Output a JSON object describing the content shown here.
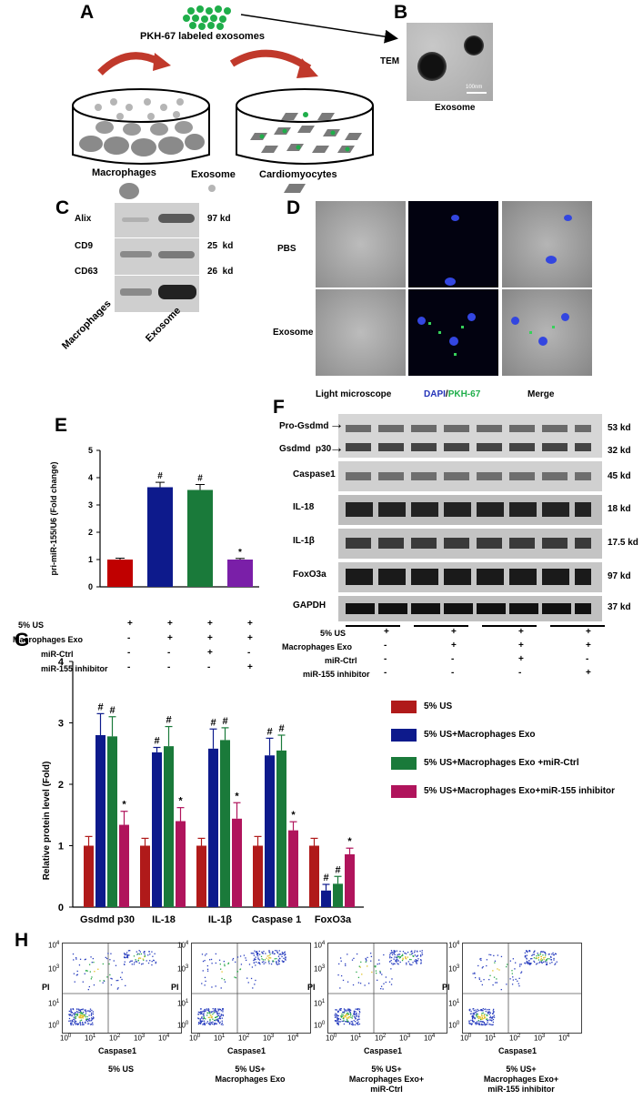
{
  "panel_labels": {
    "a": "A",
    "b": "B",
    "c": "C",
    "d": "D",
    "e": "E",
    "f": "F",
    "g": "G",
    "h": "H"
  },
  "panel_a": {
    "exosome_label": "PKH-67 labeled exosomes",
    "legend": [
      "Macrophages",
      "Exosome",
      "Cardiomyocytes"
    ],
    "colors": {
      "exosome_dots": "#1fae4a",
      "arrow": "#c0392b",
      "cell": "#8a8a8a"
    }
  },
  "panel_b": {
    "side_label": "TEM",
    "scale_bar": "100nm",
    "caption": "Exosome"
  },
  "panel_c": {
    "rows": [
      {
        "name": "Alix",
        "kd": "97 kd"
      },
      {
        "name": "CD9",
        "kd": "25  kd"
      },
      {
        "name": "CD63",
        "kd": "26  kd"
      }
    ],
    "lanes": [
      "Macrophages",
      "Exosome"
    ]
  },
  "panel_d": {
    "rows": [
      "PBS",
      "Exosome"
    ],
    "col_light": "Light microscope",
    "col_dapi": "DAPI",
    "col_slash": "/",
    "col_pkh": "PKH-67",
    "col_merge": "Merge"
  },
  "panel_e": {
    "chart_data": {
      "type": "bar",
      "ylabel": "pri-miR-155/U6 (Fold change)",
      "ylim": [
        0,
        5
      ],
      "yticks": [
        "0",
        "1",
        "2",
        "3",
        "4",
        "5"
      ],
      "values": [
        1.0,
        3.65,
        3.55,
        1.0
      ],
      "errors": [
        0.05,
        0.18,
        0.2,
        0.04
      ],
      "colors": [
        "#c00000",
        "#0d1a8c",
        "#1a7a3a",
        "#7a1fa8"
      ],
      "marks": [
        "",
        "#",
        "#",
        "*"
      ]
    },
    "conditions": [
      {
        "label": "5% US",
        "signs": [
          "+",
          "+",
          "+",
          "+"
        ]
      },
      {
        "label": "Macrophages Exo",
        "signs": [
          "-",
          "+",
          "+",
          "+"
        ]
      },
      {
        "label": "miR-Ctrl",
        "signs": [
          "-",
          "-",
          "+",
          "-"
        ]
      },
      {
        "label": "miR-155 inhibitor",
        "signs": [
          "-",
          "-",
          "-",
          "+"
        ]
      }
    ]
  },
  "panel_f": {
    "bands": [
      {
        "name": "Pro-Gsdmd",
        "kd": "53 kd"
      },
      {
        "name": "Gsdmd  p30",
        "kd": "32 kd"
      },
      {
        "name": "Caspase1",
        "kd": "45 kd"
      },
      {
        "name": "IL-18",
        "kd": "18 kd"
      },
      {
        "name": "IL-1β",
        "kd": "17.5 kd"
      },
      {
        "name": "FoxO3a",
        "kd": "97 kd"
      },
      {
        "name": "GAPDH",
        "kd": "37 kd"
      }
    ],
    "conditions": [
      {
        "label": "5% US",
        "signs": [
          "+",
          "+",
          "+",
          "+"
        ]
      },
      {
        "label": "Macrophages Exo",
        "signs": [
          "-",
          "+",
          "+",
          "+"
        ]
      },
      {
        "label": "miR-Ctrl",
        "signs": [
          "-",
          "-",
          "+",
          "-"
        ]
      },
      {
        "label": "miR-155 inhibitor",
        "signs": [
          "-",
          "-",
          "-",
          "+"
        ]
      }
    ]
  },
  "panel_g": {
    "chart_data": {
      "type": "bar",
      "ylabel": "Relative protein level (Fold)",
      "ylim": [
        0,
        4
      ],
      "yticks": [
        "0",
        "1",
        "2",
        "3",
        "4"
      ],
      "categories": [
        "Gsdmd  p30",
        "IL-18",
        "IL-1β",
        "Caspase 1",
        "FoxO3a"
      ],
      "series": [
        {
          "name": "5% US",
          "color": "#b01a1a",
          "values": [
            1.0,
            1.0,
            1.0,
            1.0,
            1.0
          ],
          "errors": [
            0.15,
            0.12,
            0.12,
            0.15,
            0.12
          ],
          "marks": [
            "",
            "",
            "",
            "",
            ""
          ]
        },
        {
          "name": "5% US+Macrophages Exo",
          "color": "#0d1a8c",
          "values": [
            2.8,
            2.52,
            2.58,
            2.47,
            0.27
          ],
          "errors": [
            0.35,
            0.08,
            0.32,
            0.28,
            0.1
          ],
          "marks": [
            "#",
            "#",
            "#",
            "#",
            "#"
          ]
        },
        {
          "name": "5% US+Macrophages Exo +miR-Ctrl",
          "color": "#1a7a3a",
          "values": [
            2.78,
            2.62,
            2.72,
            2.55,
            0.38
          ],
          "errors": [
            0.32,
            0.32,
            0.2,
            0.25,
            0.12
          ],
          "marks": [
            "#",
            "#",
            "#",
            "#",
            "#"
          ]
        },
        {
          "name": "5% US+Macrophages Exo+miR-155 inhibitor",
          "color": "#b0145c",
          "values": [
            1.34,
            1.4,
            1.44,
            1.25,
            0.86
          ],
          "errors": [
            0.22,
            0.22,
            0.26,
            0.14,
            0.1
          ],
          "marks": [
            "*",
            "*",
            "*",
            "*",
            "*"
          ]
        }
      ]
    }
  },
  "panel_h": {
    "ylabel": "PI",
    "xlabel": "Caspase1",
    "tick_x": [
      "10",
      "10",
      "10",
      "10",
      "10"
    ],
    "tick_exp": [
      "0",
      "1",
      "2",
      "3",
      "4"
    ],
    "plots": [
      {
        "caption": [
          "5% US"
        ]
      },
      {
        "caption": [
          "5% US+",
          "Macrophages Exo"
        ]
      },
      {
        "caption": [
          "5% US+",
          "Macrophages Exo+",
          "miR-Ctrl"
        ]
      },
      {
        "caption": [
          "5% US+",
          "Macrophages Exo+",
          "miR-155 inhibitor"
        ]
      }
    ]
  }
}
